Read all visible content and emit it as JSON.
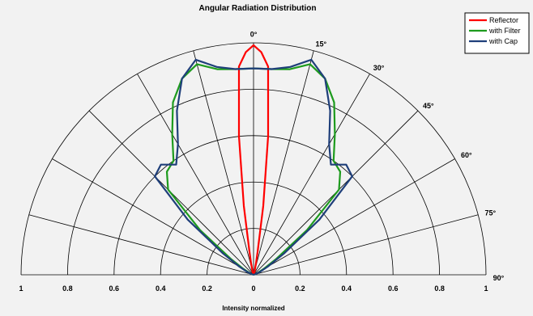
{
  "chart_data": {
    "type": "line",
    "title": "Angular Radiation Distribution",
    "xlabel": "Intensity normalized",
    "r_ticks": [
      "1",
      "0.8",
      "0.6",
      "0.4",
      "0.2",
      "0",
      "0.2",
      "0.4",
      "0.6",
      "0.8",
      "1"
    ],
    "angle_labels": [
      "0°",
      "15°",
      "30°",
      "45°",
      "60°",
      "75°",
      "90°"
    ],
    "r_range": [
      0,
      1
    ],
    "angle_range_deg": [
      -90,
      90
    ],
    "grid": true,
    "legend_position": "top-right",
    "series": [
      {
        "name": "Reflector",
        "color": "#ff0000",
        "angles_deg": [
          -90,
          -80,
          -70,
          -60,
          -50,
          -40,
          -30,
          -20,
          -15,
          -12,
          -10,
          -8,
          -6,
          -4,
          -2,
          0,
          2,
          4,
          6,
          8,
          10,
          12,
          15,
          20,
          30,
          40,
          50,
          60,
          70,
          80,
          90
        ],
        "r": [
          0,
          0,
          0,
          0,
          0,
          0,
          0,
          0.01,
          0.02,
          0.05,
          0.1,
          0.3,
          0.6,
          0.9,
          0.96,
          0.99,
          0.96,
          0.9,
          0.6,
          0.3,
          0.1,
          0.05,
          0.02,
          0.01,
          0,
          0,
          0,
          0,
          0,
          0,
          0
        ]
      },
      {
        "name": "with Filter",
        "color": "#1e9b1e",
        "angles_deg": [
          -90,
          -80,
          -70,
          -65,
          -60,
          -55,
          -50,
          -45,
          -40,
          -35,
          -30,
          -25,
          -20,
          -15,
          -10,
          -5,
          0,
          5,
          10,
          15,
          20,
          25,
          30,
          35,
          40,
          45,
          50,
          55,
          60,
          65,
          70,
          80,
          90
        ],
        "r": [
          0,
          0,
          0.01,
          0.02,
          0.05,
          0.12,
          0.3,
          0.52,
          0.58,
          0.6,
          0.7,
          0.82,
          0.9,
          0.94,
          0.9,
          0.89,
          0.89,
          0.89,
          0.9,
          0.94,
          0.9,
          0.82,
          0.7,
          0.6,
          0.58,
          0.52,
          0.3,
          0.12,
          0.05,
          0.02,
          0.01,
          0,
          0
        ]
      },
      {
        "name": "with Cap",
        "color": "#1f3f7a",
        "angles_deg": [
          -90,
          -80,
          -70,
          -65,
          -60,
          -55,
          -50,
          -45,
          -40,
          -35,
          -30,
          -25,
          -20,
          -15,
          -10,
          -5,
          0,
          5,
          10,
          15,
          20,
          25,
          30,
          35,
          40,
          45,
          50,
          55,
          60,
          65,
          70,
          80,
          90
        ],
        "r": [
          0,
          0,
          0.01,
          0.03,
          0.07,
          0.16,
          0.37,
          0.6,
          0.62,
          0.58,
          0.65,
          0.78,
          0.9,
          0.96,
          0.91,
          0.89,
          0.89,
          0.89,
          0.91,
          0.96,
          0.9,
          0.78,
          0.65,
          0.58,
          0.62,
          0.6,
          0.37,
          0.16,
          0.07,
          0.03,
          0.01,
          0,
          0
        ]
      }
    ]
  }
}
